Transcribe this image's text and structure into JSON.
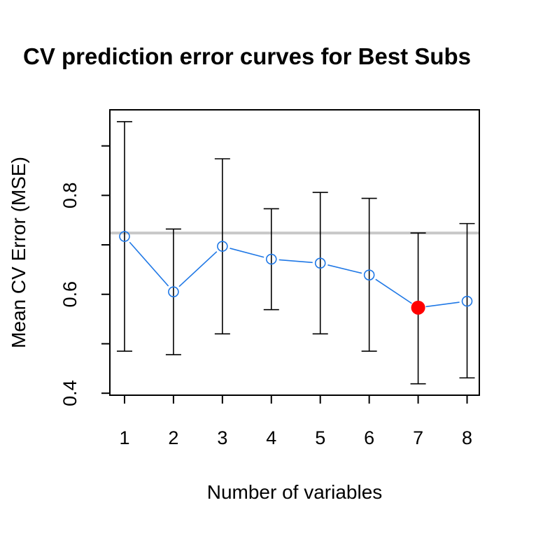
{
  "chart_data": {
    "type": "line",
    "title": "CV prediction error curves for Best Subs",
    "xlabel": "Number of variables",
    "ylabel": "Mean CV Error (MSE)",
    "x": [
      1,
      2,
      3,
      4,
      5,
      6,
      7,
      8
    ],
    "x_tick_labels": [
      "1",
      "2",
      "3",
      "4",
      "5",
      "6",
      "7",
      "8"
    ],
    "y_tick_values": [
      0.4,
      0.5,
      0.6,
      0.7,
      0.8,
      0.9
    ],
    "y_tick_labels": [
      "0.4",
      "",
      "0.6",
      "",
      "0.8",
      ""
    ],
    "xlim": [
      0.7,
      8.25
    ],
    "ylim": [
      0.396,
      0.973
    ],
    "grid": false,
    "series": [
      {
        "values": [
          0.717,
          0.605,
          0.697,
          0.671,
          0.663,
          0.639,
          0.573,
          0.586
        ],
        "upper": [
          0.949,
          0.732,
          0.874,
          0.773,
          0.806,
          0.794,
          0.724,
          0.743
        ],
        "lower": [
          0.485,
          0.478,
          0.52,
          0.569,
          0.52,
          0.485,
          0.419,
          0.431
        ],
        "color": "#1f78e6",
        "error_bar_color": "#000000"
      }
    ],
    "highlight": {
      "x": 7,
      "value": 0.573,
      "color": "#ff0000"
    },
    "reference_line": {
      "value": 0.724,
      "color": "#c8c8c8"
    }
  }
}
